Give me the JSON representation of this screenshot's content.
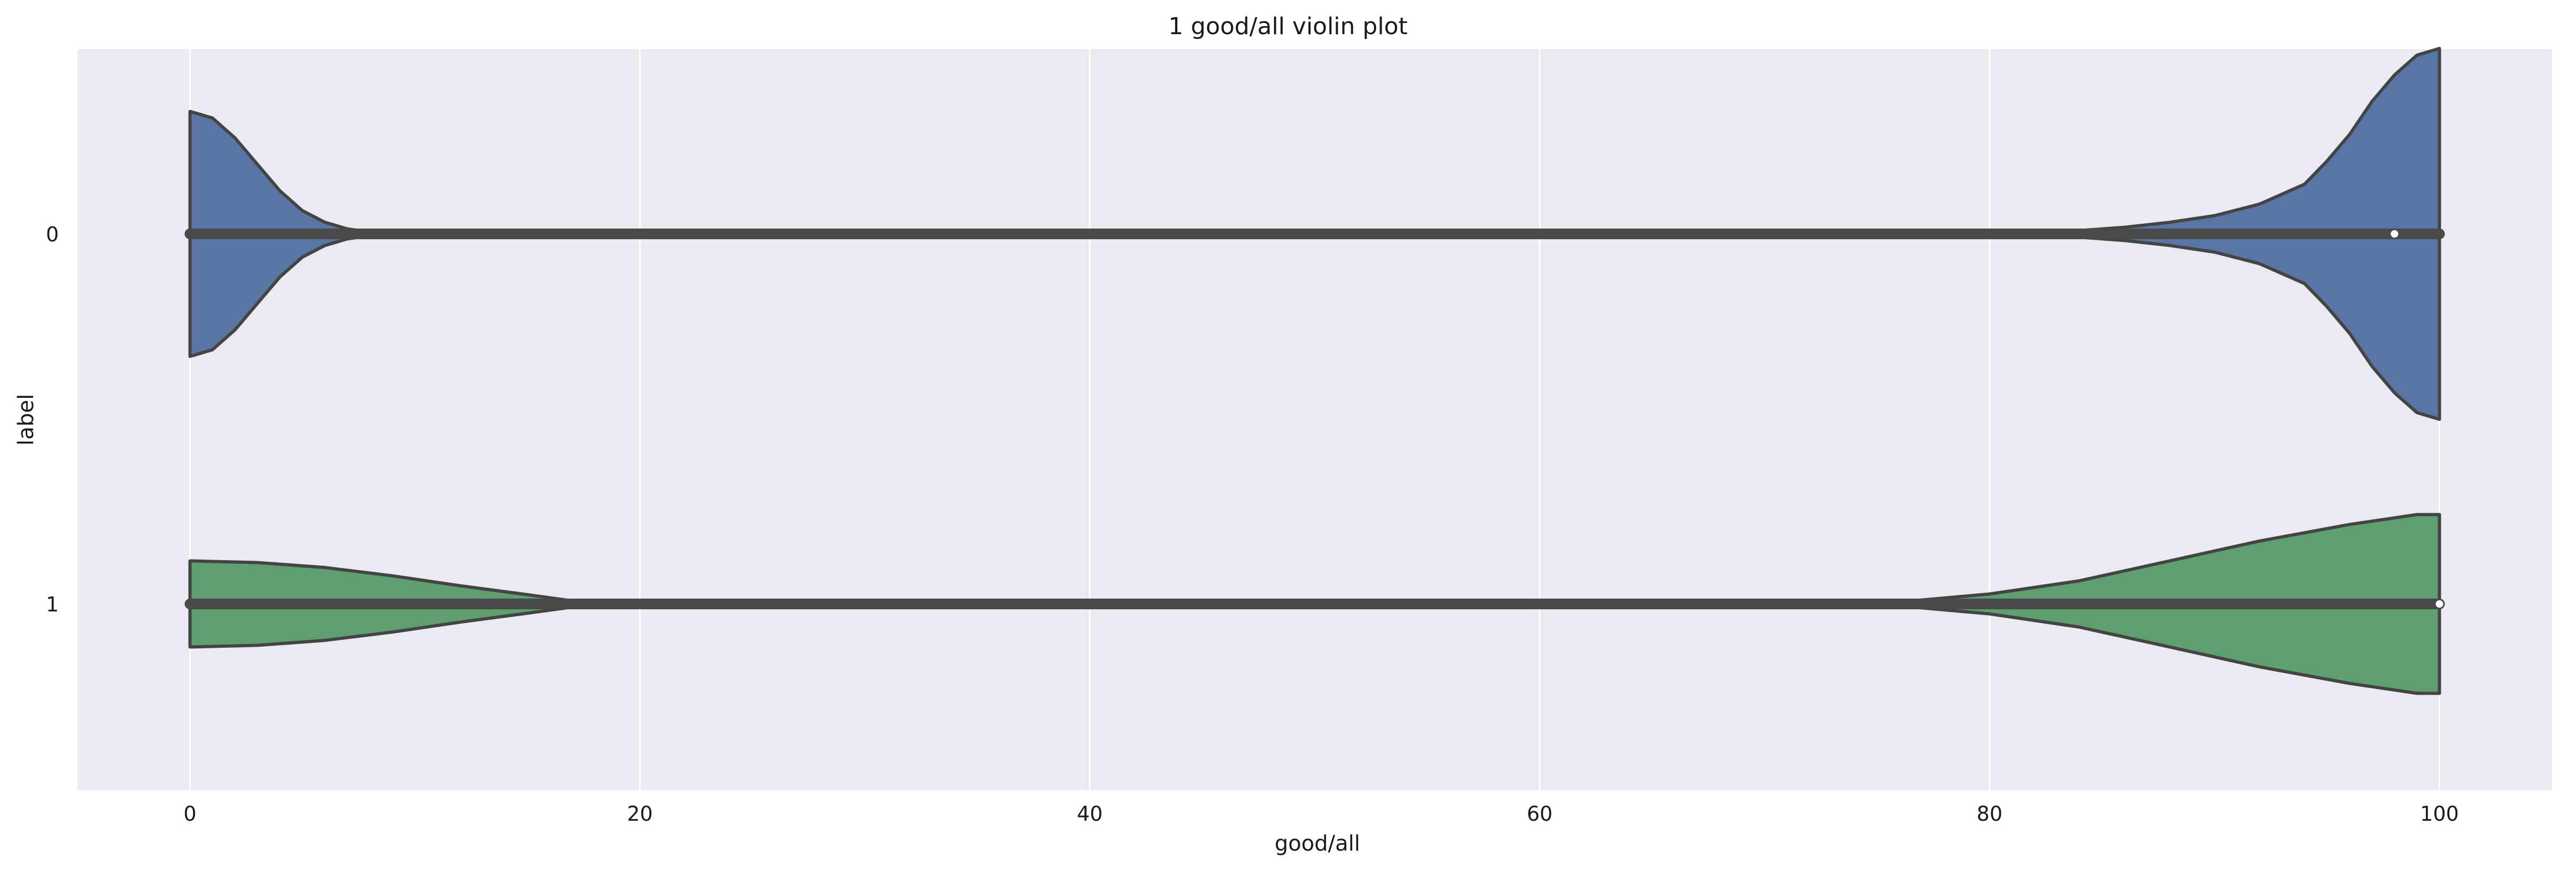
{
  "chart_data": {
    "type": "violin",
    "orientation": "horizontal",
    "title": "1 good/all violin plot",
    "xlabel": "good/all",
    "ylabel": "label",
    "xlim": [
      -5,
      105
    ],
    "xticks": [
      0,
      20,
      40,
      60,
      80,
      100
    ],
    "grid": true,
    "categories": [
      "0",
      "1"
    ],
    "series": [
      {
        "category": "0",
        "color": "#5875a4",
        "box": {
          "q1": 0,
          "q3": 100,
          "median": 98
        },
        "density": [
          [
            0,
            0.37
          ],
          [
            1,
            0.35
          ],
          [
            2,
            0.29
          ],
          [
            3,
            0.21
          ],
          [
            4,
            0.13
          ],
          [
            5,
            0.07
          ],
          [
            6,
            0.035
          ],
          [
            7,
            0.015
          ],
          [
            8,
            0.006
          ],
          [
            9,
            0.0
          ],
          [
            82,
            0.0
          ],
          [
            84,
            0.01
          ],
          [
            86,
            0.02
          ],
          [
            88,
            0.035
          ],
          [
            90,
            0.055
          ],
          [
            92,
            0.09
          ],
          [
            94,
            0.15
          ],
          [
            95,
            0.22
          ],
          [
            96,
            0.3
          ],
          [
            97,
            0.4
          ],
          [
            98,
            0.48
          ],
          [
            99,
            0.54
          ],
          [
            100,
            0.56
          ]
        ]
      },
      {
        "category": "1",
        "color": "#5f9e6e",
        "box": {
          "q1": 0,
          "q3": 100,
          "median": 100
        },
        "density": [
          [
            0,
            0.13
          ],
          [
            3,
            0.125
          ],
          [
            6,
            0.11
          ],
          [
            9,
            0.085
          ],
          [
            12,
            0.055
          ],
          [
            15,
            0.028
          ],
          [
            18,
            0.0
          ],
          [
            75,
            0.0
          ],
          [
            80,
            0.03
          ],
          [
            84,
            0.07
          ],
          [
            88,
            0.13
          ],
          [
            92,
            0.19
          ],
          [
            96,
            0.24
          ],
          [
            99,
            0.27
          ],
          [
            100,
            0.27
          ]
        ]
      }
    ]
  }
}
